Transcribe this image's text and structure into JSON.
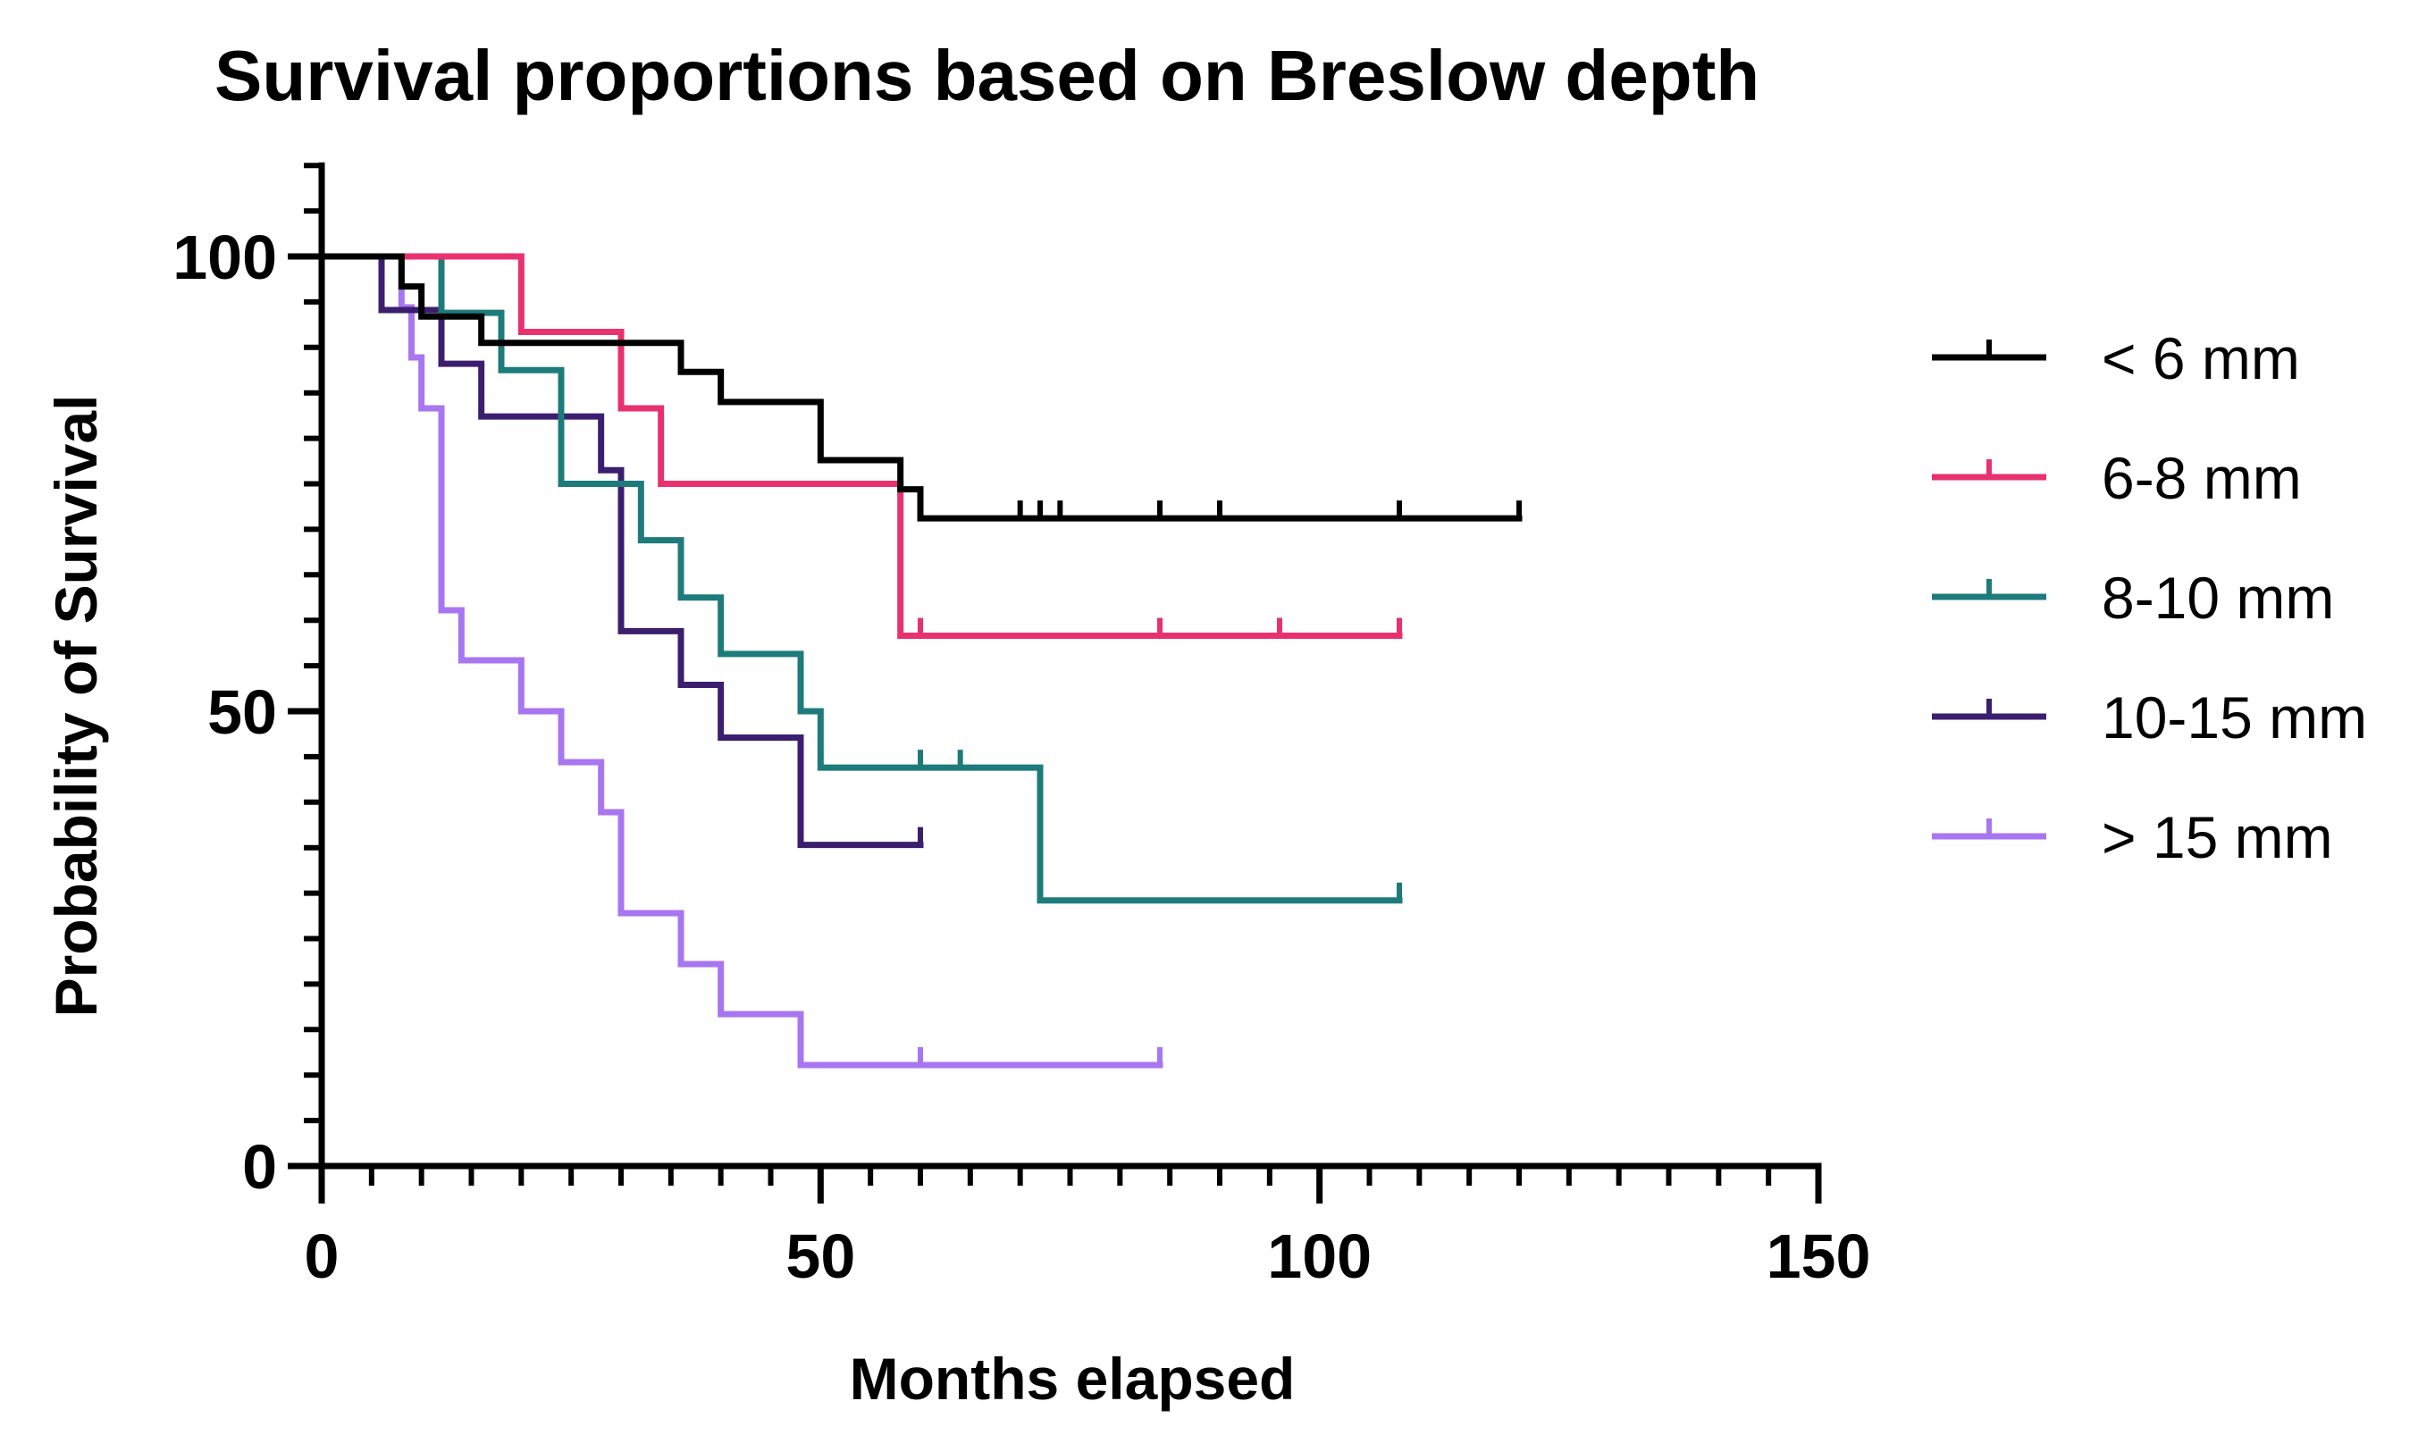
{
  "chart_data": {
    "type": "line",
    "subtype": "kaplan-meier-step",
    "title": "Survival proportions based on Breslow depth",
    "xlabel": "Months elapsed",
    "ylabel": "Probability of Survival",
    "xlim": [
      0,
      150
    ],
    "ylim": [
      0,
      110
    ],
    "x_ticks": [
      0,
      50,
      100,
      150
    ],
    "x_tick_labels": [
      "0",
      "50",
      "100",
      "150"
    ],
    "x_minor_step": 5,
    "y_ticks": [
      0,
      50,
      100
    ],
    "y_tick_labels": [
      "0",
      "50",
      "100"
    ],
    "y_minor_step": 5,
    "grid": false,
    "legend_position": "right",
    "series": [
      {
        "name": "< 6 mm",
        "color": "#000000",
        "steps": [
          [
            0,
            100
          ],
          [
            8,
            96.7
          ],
          [
            10,
            93.4
          ],
          [
            16,
            90.5
          ],
          [
            36,
            87.3
          ],
          [
            40,
            84
          ],
          [
            50,
            77.6
          ],
          [
            58,
            74.4
          ],
          [
            60,
            71.2
          ]
        ],
        "end_x": 120,
        "censored": [
          70,
          72,
          74,
          84,
          90,
          108,
          120
        ]
      },
      {
        "name": "6-8 mm",
        "color": "#E8316F",
        "steps": [
          [
            0,
            100
          ],
          [
            20,
            91.7
          ],
          [
            30,
            83.3
          ],
          [
            34,
            75
          ],
          [
            58,
            58.3
          ]
        ],
        "end_x": 108,
        "censored": [
          60,
          84,
          96,
          108
        ]
      },
      {
        "name": "8-10 mm",
        "color": "#1E7B7B",
        "steps": [
          [
            0,
            100
          ],
          [
            12,
            93.8
          ],
          [
            18,
            87.5
          ],
          [
            24,
            75
          ],
          [
            32,
            68.8
          ],
          [
            36,
            62.5
          ],
          [
            40,
            56.3
          ],
          [
            48,
            50
          ],
          [
            50,
            43.8
          ],
          [
            72,
            29.2
          ]
        ],
        "end_x": 108,
        "censored": [
          60,
          64,
          108
        ]
      },
      {
        "name": "10-15 mm",
        "color": "#3B1F6E",
        "steps": [
          [
            0,
            100
          ],
          [
            6,
            94.1
          ],
          [
            12,
            88.2
          ],
          [
            16,
            82.4
          ],
          [
            28,
            76.5
          ],
          [
            30,
            58.8
          ],
          [
            36,
            52.9
          ],
          [
            40,
            47.1
          ],
          [
            48,
            35.3
          ]
        ],
        "end_x": 60,
        "censored": [
          60
        ]
      },
      {
        "name": "> 15 mm",
        "color": "#A876F0",
        "steps": [
          [
            0,
            100
          ],
          [
            8,
            94.4
          ],
          [
            9,
            88.9
          ],
          [
            10,
            83.3
          ],
          [
            12,
            61.1
          ],
          [
            14,
            55.6
          ],
          [
            20,
            50
          ],
          [
            24,
            44.4
          ],
          [
            28,
            38.9
          ],
          [
            30,
            27.8
          ],
          [
            36,
            22.2
          ],
          [
            40,
            16.7
          ],
          [
            48,
            11.1
          ]
        ],
        "end_x": 84,
        "censored": [
          60,
          84
        ]
      }
    ]
  }
}
